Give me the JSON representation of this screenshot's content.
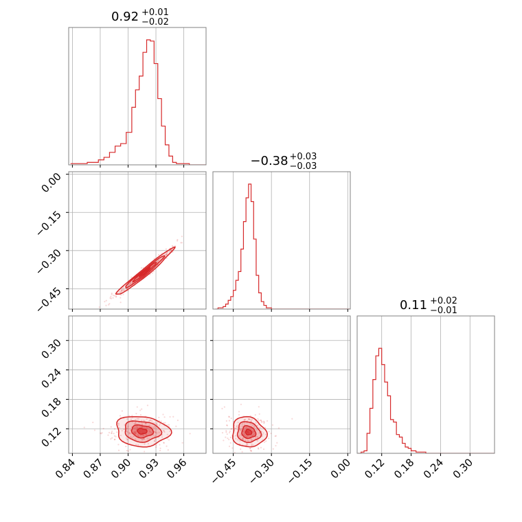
{
  "chart_data": {
    "type": "corner",
    "color": "#d62728",
    "grid": true,
    "parameters": [
      {
        "median": "0.92",
        "plus": "+0.01",
        "minus": "−0.02"
      },
      {
        "median": "−0.38",
        "plus": "+0.03",
        "minus": "−0.03"
      },
      {
        "median": "0.11",
        "plus": "+0.02",
        "minus": "−0.01"
      }
    ],
    "ranges": [
      [
        0.836,
        0.984
      ],
      [
        -0.53,
        0.01
      ],
      [
        0.07,
        0.35
      ]
    ],
    "ticks": [
      [
        0.84,
        0.87,
        0.9,
        0.93,
        0.96
      ],
      [
        -0.45,
        -0.3,
        -0.15,
        0.0
      ],
      [
        0.12,
        0.18,
        0.24,
        0.3
      ]
    ],
    "tick_labels": [
      [
        "0.84",
        "0.87",
        "0.90",
        "0.93",
        "0.96"
      ],
      [
        "−0.45",
        "−0.30",
        "−0.15",
        "0.00"
      ],
      [
        "0.12",
        "0.18",
        "0.24",
        "0.30"
      ]
    ],
    "histograms": [
      {
        "x": [
          0.838,
          0.844,
          0.85,
          0.856,
          0.862,
          0.868,
          0.874,
          0.88,
          0.886,
          0.892,
          0.898,
          0.904,
          0.908,
          0.912,
          0.916,
          0.92,
          0.924,
          0.928,
          0.932,
          0.936,
          0.94,
          0.944,
          0.948,
          0.952,
          0.958,
          0.966,
          0.976
        ],
        "y": [
          0.01,
          0.01,
          0.01,
          0.02,
          0.02,
          0.04,
          0.06,
          0.1,
          0.15,
          0.17,
          0.26,
          0.46,
          0.6,
          0.71,
          0.9,
          1.0,
          0.99,
          0.81,
          0.53,
          0.31,
          0.16,
          0.07,
          0.02,
          0.01,
          0.01,
          0.0,
          0.0
        ]
      },
      {
        "x": [
          -0.52,
          -0.51,
          -0.5,
          -0.49,
          -0.48,
          -0.47,
          -0.46,
          -0.45,
          -0.44,
          -0.43,
          -0.42,
          -0.41,
          -0.4,
          -0.39,
          -0.38,
          -0.37,
          -0.36,
          -0.35,
          -0.34,
          -0.33,
          -0.32,
          -0.31,
          -0.3,
          -0.29,
          -0.25,
          -0.15,
          -0.05
        ],
        "y": [
          0.0,
          0.01,
          0.01,
          0.02,
          0.04,
          0.07,
          0.1,
          0.15,
          0.23,
          0.3,
          0.48,
          0.7,
          0.89,
          1.0,
          0.86,
          0.56,
          0.27,
          0.13,
          0.06,
          0.03,
          0.01,
          0.01,
          0.0,
          0.0,
          0.0,
          0.0,
          0.0
        ]
      },
      {
        "x": [
          0.072,
          0.078,
          0.084,
          0.09,
          0.096,
          0.102,
          0.108,
          0.114,
          0.12,
          0.126,
          0.132,
          0.138,
          0.144,
          0.15,
          0.156,
          0.162,
          0.168,
          0.174,
          0.18,
          0.19,
          0.2,
          0.21,
          0.23,
          0.25,
          0.28,
          0.32
        ],
        "y": [
          0.0,
          0.01,
          0.02,
          0.16,
          0.36,
          0.59,
          0.78,
          0.84,
          0.71,
          0.57,
          0.46,
          0.27,
          0.25,
          0.15,
          0.13,
          0.08,
          0.05,
          0.04,
          0.02,
          0.01,
          0.01,
          0.0,
          0.0,
          0.0,
          0.0,
          0.0
        ]
      }
    ],
    "correlations": [
      {
        "row": 1,
        "col": 0,
        "mean": [
          0.918,
          -0.385
        ],
        "sd": [
          0.014,
          0.042
        ],
        "rho": 0.98
      },
      {
        "row": 2,
        "col": 0,
        "mean": [
          0.915,
          0.115
        ],
        "sd": [
          0.013,
          0.014
        ],
        "rho": -0.1
      },
      {
        "row": 2,
        "col": 1,
        "mean": [
          -0.39,
          0.113
        ],
        "sd": [
          0.03,
          0.014
        ],
        "rho": -0.1
      }
    ]
  }
}
